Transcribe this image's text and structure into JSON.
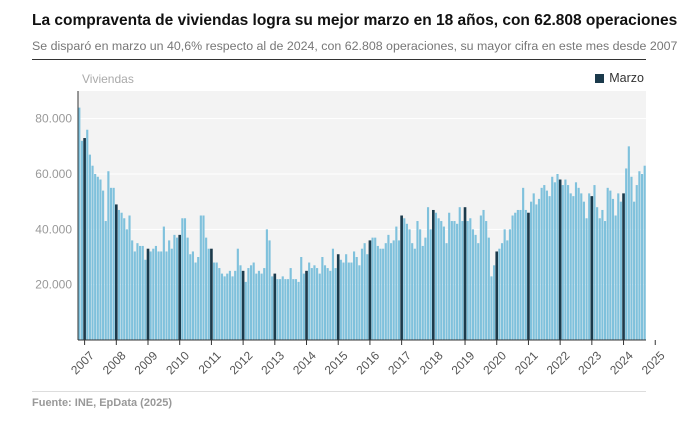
{
  "header": {
    "title": "La compraventa de viviendas logra su mejor marzo en 18 años, con 62.808 operaciones",
    "subtitle": "Se disparó en marzo un 40,6% respecto al de 2024, con 62.808 operaciones, su mayor cifra en este mes desde 2007"
  },
  "footer": {
    "source": "Fuente: INE, EpData (2025)"
  },
  "chart_data": {
    "type": "bar",
    "ylabel": "Viviendas",
    "ylim": [
      0,
      90000
    ],
    "yticks": [
      20000,
      40000,
      60000,
      80000
    ],
    "ytick_labels": [
      "20.000",
      "40.000",
      "60.000",
      "80.000"
    ],
    "xtick_labels": [
      "2007",
      "2008",
      "2009",
      "2010",
      "2011",
      "2012",
      "2013",
      "2014",
      "2015",
      "2016",
      "2017",
      "2018",
      "2019",
      "2020",
      "2021",
      "2022",
      "2023",
      "2024",
      "2025"
    ],
    "grid": true,
    "legend": {
      "position": "top-right",
      "entries": [
        {
          "label": "Marzo",
          "color": "#1b3a4b"
        }
      ]
    },
    "colors": {
      "bars": "#7fc1dc",
      "march": "#1b3a4b"
    },
    "series": [
      {
        "values": [
          84000,
          72000,
          73000,
          76000,
          67000,
          63000,
          60000,
          59000,
          58000,
          54000,
          43000,
          61000,
          55000,
          55000,
          49000,
          47000,
          46000,
          44000,
          40000,
          45000,
          36000,
          32000,
          35000,
          34000,
          34000,
          29000,
          33000,
          32000,
          33000,
          34000,
          32000,
          32000,
          41000,
          32000,
          36000,
          33000,
          38000,
          37000,
          38000,
          44000,
          44000,
          37000,
          31000,
          32000,
          28000,
          30000,
          45000,
          45000,
          37000,
          33000,
          33000,
          28000,
          28000,
          26000,
          24000,
          23000,
          24000,
          25000,
          23000,
          25000,
          33000,
          27000,
          25000,
          21000,
          26000,
          27000,
          28000,
          24000,
          25000,
          24000,
          26000,
          40000,
          36000,
          23000,
          24000,
          22000,
          22000,
          23000,
          22000,
          22000,
          26000,
          22000,
          22000,
          21000,
          30000,
          24000,
          25000,
          28000,
          26000,
          27000,
          26000,
          24000,
          30000,
          27000,
          26000,
          25000,
          33000,
          26000,
          31000,
          29000,
          28000,
          31000,
          28000,
          28000,
          32000,
          30000,
          27000,
          33000,
          35000,
          31000,
          36000,
          37000,
          37000,
          34000,
          33000,
          33000,
          35000,
          38000,
          35000,
          36000,
          41000,
          36000,
          45000,
          44000,
          42000,
          40000,
          35000,
          33000,
          43000,
          40000,
          34000,
          37000,
          48000,
          40000,
          47000,
          46000,
          44000,
          43000,
          41000,
          35000,
          46000,
          43000,
          43000,
          42000,
          48000,
          43000,
          48000,
          43000,
          44000,
          40000,
          38000,
          35000,
          45000,
          47000,
          43000,
          37000,
          23000,
          27000,
          32000,
          33000,
          35000,
          40000,
          36000,
          40000,
          45000,
          46000,
          47000,
          47000,
          55000,
          47000,
          46000,
          50000,
          53000,
          49000,
          51000,
          55000,
          56000,
          54000,
          52000,
          59000,
          57000,
          60000,
          58000,
          56000,
          58000,
          56000,
          53000,
          52000,
          57000,
          55000,
          53000,
          50000,
          44000,
          53000,
          52000,
          56000,
          48000,
          44000,
          47000,
          43000,
          55000,
          54000,
          51000,
          45000,
          53000,
          50000,
          53000,
          62000,
          70000,
          59000,
          50000,
          56000,
          61000,
          60000,
          63000
        ]
      }
    ]
  }
}
